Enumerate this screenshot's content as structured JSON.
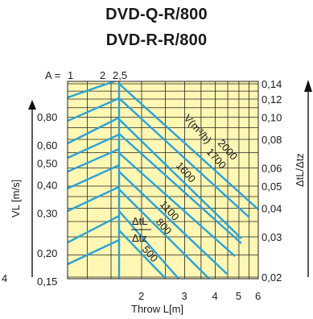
{
  "title_lines": [
    "DVD-Q-R/800",
    "DVD-R-R/800"
  ],
  "chart_data": {
    "type": "line",
    "title": "DVD-Q-R/800 DVD-R-R/800",
    "xlabel": "Throw L[m]",
    "ylabel_left": "VL [m/s]",
    "ylabel_right": "ΔtL/Δtz",
    "x_scale": "log",
    "y_scale": "log",
    "grid": true,
    "x_ticks": [
      "2",
      "3",
      "4",
      "5",
      "6"
    ],
    "y_ticks_left": [
      "0,80",
      "0,60",
      "0,50",
      "0,40",
      "0,30",
      "0,20",
      "0,15"
    ],
    "y_ticks_right": [
      "0,14",
      "0,12",
      "0,10",
      "0,08",
      "0,06",
      "0,05",
      "0,04",
      "0,03",
      "0,02"
    ],
    "top_scale_label": "A =",
    "top_scale_ticks": [
      "1",
      "2",
      "2,5"
    ],
    "stray_label": "4",
    "flow_label": "V(m³/h)",
    "ratio_label_num": "ΔtL",
    "ratio_label_den": "Δtz",
    "airflow_labels": [
      "2000",
      "1700",
      "1600",
      "1100",
      "800",
      "500"
    ],
    "colors": {
      "curves": "#2aa3d8",
      "background": "#fff7b3",
      "grid": "#222222"
    }
  }
}
